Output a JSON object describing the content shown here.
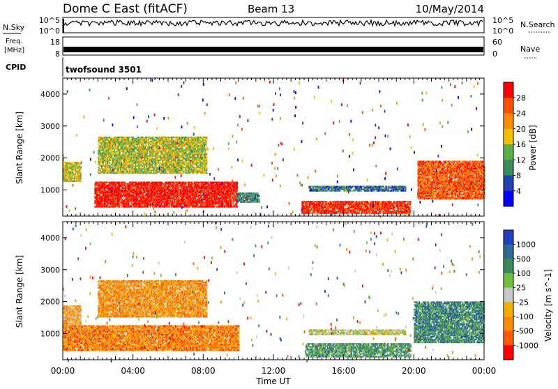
{
  "header": {
    "title": "Dome C East (fitACF)",
    "beam": "Beam 13",
    "date": "10/May/2014"
  },
  "summary_panels": {
    "nsky": {
      "label": "N.Sky",
      "top_tick": "10^5",
      "bottom_tick": "10^0",
      "right_label": "N.Search",
      "right_top_tick": "10^5",
      "right_bottom_tick": "10^0"
    },
    "freq": {
      "label_line1": "Freq.",
      "label_line2": "[MHz]",
      "top_tick": "18",
      "bottom_tick": "8",
      "right_label": "Nave",
      "right_top_tick": "60",
      "right_bottom_tick": "0"
    },
    "cpid": {
      "label": "CPID",
      "program": "twofsound 3501"
    }
  },
  "colors": {
    "power_scale": [
      "#0000ff",
      "#2244aa",
      "#3c8c5a",
      "#58b048",
      "#f4c000",
      "#ff8c00",
      "#ff5000",
      "#ff0000"
    ],
    "velocity_scale": [
      "#2040c0",
      "#2d6b96",
      "#3a8a5a",
      "#70c040",
      "#c8c8c8",
      "#f0b000",
      "#ff8c00",
      "#ff5a00",
      "#ff0000"
    ]
  },
  "chart_data": [
    {
      "type": "heatmap",
      "name": "power",
      "ylabel": "Slant Range [km]",
      "yticks": [
        1000,
        2000,
        3000,
        4000
      ],
      "ylim": [
        180,
        4500
      ],
      "xlim": [
        0,
        24
      ],
      "colorbar": {
        "label": "Power [dB]",
        "ticks": [
          "4",
          "8",
          "12",
          "16",
          "20",
          "24",
          "28"
        ]
      },
      "blobs": [
        {
          "t0": 1.8,
          "t1": 9.9,
          "r0": 450,
          "r1": 1250,
          "level": 0.95
        },
        {
          "t0": 0.0,
          "t1": 1.0,
          "r0": 1250,
          "r1": 1850,
          "level": 0.55
        },
        {
          "t0": 9.9,
          "t1": 11.2,
          "r0": 600,
          "r1": 900,
          "level": 0.3
        },
        {
          "t0": 13.6,
          "t1": 19.8,
          "r0": 250,
          "r1": 650,
          "level": 0.9
        },
        {
          "t0": 14.0,
          "t1": 19.5,
          "r0": 950,
          "r1": 1100,
          "level": 0.25
        },
        {
          "t0": 20.2,
          "t1": 24.0,
          "r0": 700,
          "r1": 1900,
          "level": 0.8
        },
        {
          "t0": 2.0,
          "t1": 8.2,
          "r0": 1500,
          "r1": 2650,
          "level": 0.5
        }
      ]
    },
    {
      "type": "heatmap",
      "name": "velocity",
      "ylabel": "Slant Range [km]",
      "xlabel": "Time UT",
      "xticks": [
        "00:00",
        "04:00",
        "08:00",
        "12:00",
        "16:00",
        "20:00",
        "00:00"
      ],
      "yticks": [
        1000,
        2000,
        3000,
        4000
      ],
      "ylim": [
        180,
        4500
      ],
      "xlim": [
        0,
        24
      ],
      "colorbar": {
        "label": "Velocity [m s^-1]",
        "ticks": [
          "1000",
          "500",
          "100",
          "25",
          "-25",
          "-100",
          "-500",
          "-1000"
        ]
      },
      "blobs": [
        {
          "t0": 0.0,
          "t1": 10.0,
          "r0": 450,
          "r1": 1250,
          "level": 0.75
        },
        {
          "t0": 0.0,
          "t1": 1.0,
          "r0": 1250,
          "r1": 1850,
          "level": 0.65
        },
        {
          "t0": 13.8,
          "t1": 19.8,
          "r0": 250,
          "r1": 700,
          "level": 0.3
        },
        {
          "t0": 14.0,
          "t1": 19.5,
          "r0": 950,
          "r1": 1100,
          "level": 0.5
        },
        {
          "t0": 20.0,
          "t1": 24.0,
          "r0": 700,
          "r1": 2000,
          "level": 0.25
        },
        {
          "t0": 2.0,
          "t1": 8.2,
          "r0": 1500,
          "r1": 2650,
          "level": 0.7
        }
      ]
    }
  ]
}
